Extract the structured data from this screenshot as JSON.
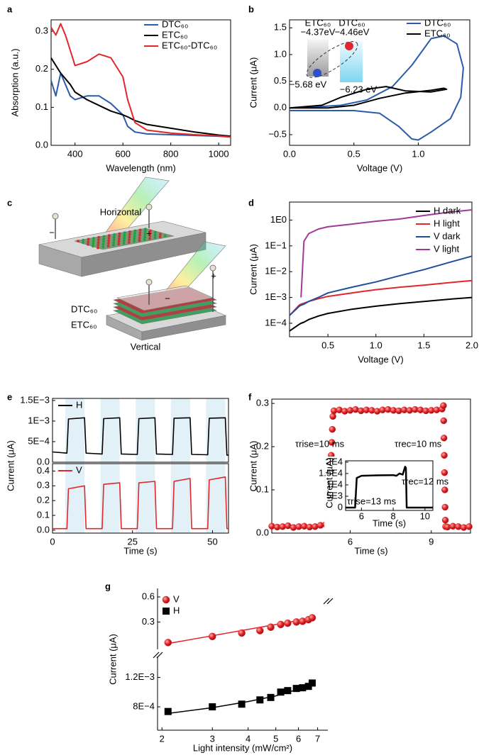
{
  "chart_data": [
    {
      "panel": "a",
      "type": "line",
      "xlabel": "Wavelength (nm)",
      "ylabel": "Absorption (a.u.)",
      "x": [
        300,
        320,
        340,
        360,
        380,
        400,
        450,
        500,
        550,
        600,
        620,
        650,
        700,
        800,
        900,
        1000,
        1050
      ],
      "xlim": [
        300,
        1050
      ],
      "xticks": [
        400,
        600,
        800,
        1000
      ],
      "ylim": [
        0,
        0.33
      ],
      "yticks": [
        {
          "value": 0,
          "label": "0.0"
        },
        0.1,
        0.2,
        0.3
      ],
      "legend": "upper right",
      "series": [
        {
          "name": "DTC₆₀",
          "color": "#2a5caa",
          "values": [
            0.17,
            0.13,
            0.19,
            0.16,
            0.13,
            0.12,
            0.13,
            0.13,
            0.11,
            0.08,
            0.05,
            0.035,
            0.03,
            0.028,
            0.026,
            0.024,
            0.022
          ]
        },
        {
          "name": "ETC₆₀",
          "color": "#000000",
          "values": [
            0.23,
            0.21,
            0.19,
            0.175,
            0.16,
            0.14,
            0.12,
            0.105,
            0.09,
            0.08,
            0.075,
            0.065,
            0.055,
            0.045,
            0.035,
            0.027,
            0.024
          ]
        },
        {
          "name": "ETC₆₀-DTC₆₀",
          "color": "#e3262b",
          "values": [
            0.31,
            0.29,
            0.32,
            0.29,
            0.25,
            0.21,
            0.22,
            0.24,
            0.23,
            0.18,
            0.12,
            0.06,
            0.04,
            0.032,
            0.028,
            0.025,
            0.022
          ]
        }
      ]
    },
    {
      "panel": "b",
      "type": "line",
      "xlabel": "Voltage (V)",
      "ylabel": "Current (μA)",
      "xlim": [
        0,
        1.4
      ],
      "xticks": [
        {
          "value": 0,
          "label": "0.0"
        },
        0.5,
        {
          "value": 1,
          "label": "1.0"
        }
      ],
      "ylim": [
        -0.7,
        1.65
      ],
      "yticks": [
        {
          "value": -0.5,
          "label": "−0.5"
        },
        {
          "value": 0,
          "label": "0.0"
        },
        0.5,
        {
          "value": 1,
          "label": "1.0"
        },
        1.5
      ],
      "legend": "upper right",
      "series": [
        {
          "name": "DTC₆₀",
          "color": "#2a5caa",
          "x": [
            0,
            0.5,
            0.7,
            0.85,
            0.95,
            1.0,
            1.1,
            1.25,
            1.33,
            1.35,
            1.3,
            1.2,
            1.1,
            0.95,
            0.8,
            0.6,
            0.4,
            0.2,
            0
          ],
          "values": [
            -0.05,
            -0.05,
            -0.1,
            -0.35,
            -0.58,
            -0.6,
            -0.45,
            -0.2,
            0.2,
            0.75,
            1.2,
            1.35,
            1.3,
            0.8,
            0.4,
            0.15,
            0.05,
            0.02,
            0
          ]
        },
        {
          "name": "ETC₆₀",
          "color": "#000000",
          "x": [
            0,
            0.3,
            0.5,
            0.7,
            0.9,
            1.1,
            1.2,
            1.22,
            1.1,
            0.9,
            0.75,
            0.6,
            0.4,
            0.25,
            0
          ],
          "values": [
            0,
            0,
            0.05,
            0.18,
            0.28,
            0.33,
            0.37,
            0.35,
            0.3,
            0.32,
            0.4,
            0.35,
            0.2,
            0.05,
            0
          ]
        }
      ],
      "inset": {
        "materials": [
          "ETC₆₀",
          "DTC₆₀"
        ],
        "levels": [
          "−4.37eV",
          "−4.46eV",
          "−5.68 eV",
          "−6.23 eV"
        ]
      }
    },
    {
      "panel": "c",
      "type": "diagram",
      "labels": {
        "horizontal": "Horizontal",
        "top_layer": "DTC₆₀",
        "bottom_layer": "ETC₆₀",
        "vertical": "Vertical"
      },
      "signs": [
        "−",
        "+",
        "−",
        "+"
      ]
    },
    {
      "panel": "d",
      "type": "line",
      "xlabel": "Voltage (V)",
      "ylabel": "Current (μA)",
      "yscale": "log",
      "x": [
        0.1,
        0.2,
        0.22,
        0.25,
        0.3,
        0.4,
        0.5,
        0.75,
        1.0,
        1.25,
        1.5,
        1.75,
        2.0
      ],
      "xlim": [
        0.1,
        2.0
      ],
      "xticks": [
        0.5,
        {
          "value": 1,
          "label": "1.0"
        },
        1.5,
        {
          "value": 2,
          "label": "2.0"
        }
      ],
      "ylim": [
        3e-05,
        5
      ],
      "yticks": [
        {
          "value": 0.0001,
          "label": "1E−4"
        },
        {
          "value": 0.001,
          "label": "1E−3"
        },
        {
          "value": 0.01,
          "label": "1E−2"
        },
        {
          "value": 0.1,
          "label": "1E−1"
        },
        {
          "value": 1,
          "label": "1E0"
        }
      ],
      "legend": "upper right",
      "series": [
        {
          "name": "H dark",
          "color": "#000000",
          "values": [
            5e-05,
            9e-05,
            0.0001,
            0.00011,
            0.00014,
            0.00019,
            0.00024,
            0.00035,
            0.00046,
            0.00058,
            0.0007,
            0.00085,
            0.001
          ]
        },
        {
          "name": "H light",
          "color": "#e3262b",
          "values": [
            0.0002,
            0.0005,
            0.00055,
            0.0006,
            0.0007,
            0.0009,
            0.0011,
            0.0015,
            0.002,
            0.0025,
            0.003,
            0.0037,
            0.0045
          ]
        },
        {
          "name": "V dark",
          "color": "#1f4e9b",
          "values": [
            0.0002,
            0.00045,
            0.0005,
            0.00055,
            0.0007,
            0.001,
            0.0015,
            0.0025,
            0.004,
            0.007,
            0.012,
            0.022,
            0.04
          ]
        },
        {
          "name": "V light",
          "color": "#a0399a",
          "values": [
            null,
            null,
            0.001,
            0.15,
            0.3,
            0.45,
            0.55,
            0.7,
            0.9,
            1.1,
            1.5,
            2.0,
            2.5
          ]
        }
      ]
    },
    {
      "panel": "e",
      "type": "line",
      "xlabel": "Time (s)",
      "ylabel": "Current (μA)",
      "xlim": [
        0,
        55
      ],
      "xticks": [
        0,
        25,
        50
      ],
      "spans": [
        [
          4,
          10
        ],
        [
          15,
          21
        ],
        [
          26,
          32
        ],
        [
          37,
          43
        ],
        [
          48,
          54
        ]
      ],
      "subplots": [
        {
          "ylim": [
            0,
            0.00155
          ],
          "yticks": [
            {
              "value": 0,
              "label": "0.0"
            },
            {
              "value": 0.0005,
              "label": "5E−4"
            },
            {
              "value": 0.001,
              "label": "1E−3"
            },
            {
              "value": 0.0015,
              "label": "1.5E−3"
            }
          ],
          "series": [
            {
              "name": "H",
              "color": "#000000",
              "x": [
                0,
                4.5,
                5,
                10,
                10.5,
                15.5,
                16,
                21,
                21.5,
                26.5,
                27,
                32,
                32.5,
                37.5,
                38,
                43,
                43.5,
                48.5,
                49,
                54,
                54.5,
                55
              ],
              "values": [
                0.00025,
                0.00022,
                0.00105,
                0.00108,
                0.00022,
                0.0002,
                0.00106,
                0.00108,
                0.0002,
                0.00019,
                0.00106,
                0.00108,
                0.0002,
                0.00019,
                0.00107,
                0.00108,
                0.00019,
                0.00018,
                0.00107,
                0.00108,
                0.00017,
                0.00017
              ]
            }
          ]
        },
        {
          "ylim": [
            -0.02,
            0.45
          ],
          "yticks": [
            {
              "value": 0,
              "label": "0.0"
            },
            0.1,
            0.2,
            0.3,
            0.4
          ],
          "series": [
            {
              "name": "V",
              "color": "#e3262b",
              "x": [
                0,
                4.5,
                5,
                10,
                10.5,
                15.5,
                16,
                21,
                21.5,
                26.5,
                27,
                32,
                32.5,
                37.5,
                38,
                43,
                43.5,
                48.5,
                49,
                54,
                54.5,
                55
              ],
              "values": [
                0.01,
                0.01,
                0.28,
                0.3,
                0.01,
                0.01,
                0.31,
                0.32,
                0.01,
                0.01,
                0.32,
                0.33,
                0.01,
                0.01,
                0.33,
                0.35,
                0.01,
                0.01,
                0.34,
                0.36,
                0.01,
                0.01
              ]
            }
          ]
        }
      ]
    },
    {
      "panel": "f",
      "type": "scatter",
      "xlabel": "Time (s)",
      "ylabel": "Current (μA)",
      "color": "#e3262b",
      "xlim": [
        3.1,
        10.45
      ],
      "xticks": [
        6,
        9
      ],
      "ylim": [
        0,
        0.31
      ],
      "yticks": [
        {
          "value": 0,
          "label": "0.0"
        },
        0.1,
        0.2,
        0.3
      ],
      "x": [
        3.1,
        3.3,
        3.5,
        3.7,
        3.9,
        4.1,
        4.3,
        4.5,
        4.7,
        4.9,
        5.1,
        5.2,
        5.22,
        5.24,
        5.26,
        5.28,
        5.3,
        5.32,
        5.34,
        5.36,
        5.4,
        5.6,
        5.8,
        6.0,
        6.2,
        6.4,
        6.6,
        6.8,
        7.0,
        7.2,
        7.4,
        7.6,
        7.8,
        8.0,
        8.2,
        8.4,
        8.6,
        8.8,
        9.0,
        9.2,
        9.4,
        9.45,
        9.46,
        9.47,
        9.48,
        9.49,
        9.5,
        9.51,
        9.52,
        9.53,
        9.6,
        9.8,
        10.0,
        10.2,
        10.4
      ],
      "values": [
        0.016,
        0.014,
        0.015,
        0.017,
        0.013,
        0.015,
        0.016,
        0.014,
        0.015,
        0.018,
        0.02,
        0.04,
        0.06,
        0.09,
        0.12,
        0.15,
        0.18,
        0.21,
        0.24,
        0.27,
        0.283,
        0.285,
        0.282,
        0.284,
        0.286,
        0.283,
        0.285,
        0.284,
        0.282,
        0.285,
        0.286,
        0.284,
        0.283,
        0.285,
        0.284,
        0.286,
        0.285,
        0.283,
        0.284,
        0.285,
        0.287,
        0.295,
        0.26,
        0.22,
        0.18,
        0.14,
        0.1,
        0.06,
        0.03,
        0.015,
        0.014,
        0.016,
        0.015,
        0.013,
        0.015
      ],
      "annotations": [
        "τrise=10 ms",
        "τrec=10 ms"
      ],
      "inset": {
        "type": "line",
        "xlabel": "Time (s)",
        "ylabel": "Current (μA)",
        "xlim": [
          5,
          10.5
        ],
        "xticks": [
          6,
          8,
          10
        ],
        "ylim": [
          -1250,
          20600
        ],
        "yticks": [
          0,
          {
            "value": 5000,
            "label": "5E3"
          },
          {
            "value": 10000,
            "label": "1E4"
          },
          {
            "value": 15000,
            "label": "1.5E4"
          },
          {
            "value": 20000,
            "label": "2E4"
          }
        ],
        "x": [
          5,
          5.6,
          5.7,
          6,
          7,
          8,
          8.2,
          8.4,
          8.6,
          8.75,
          8.8,
          8.85,
          10.5
        ],
        "values": [
          0,
          0,
          13000,
          14000,
          14200,
          14300,
          14000,
          15000,
          14500,
          18000,
          17500,
          0,
          0
        ],
        "annotations": [
          "τrise=13 ms",
          "τrec=12 ms"
        ]
      }
    },
    {
      "panel": "g",
      "type": "scatter",
      "xlabel": "Light intensity (mW/cm²)",
      "ylabel": "Current (μA)",
      "xscale": "log",
      "yscale": "log",
      "xlim": [
        1.93,
        7.6
      ],
      "xticks": [
        2,
        3,
        4,
        5,
        6,
        7
      ],
      "subplots": [
        {
          "ylim": [
            0.13,
            0.76
          ],
          "yticks": [
            0.3,
            0.6
          ],
          "series": [
            {
              "name": "V",
              "color": "#e3262b",
              "marker": "circle",
              "x": [
                2.1,
                3,
                3.8,
                4.4,
                4.8,
                5.2,
                5.5,
                5.9,
                6.2,
                6.5,
                6.7
              ],
              "values": [
                0.17,
                0.201,
                0.221,
                0.236,
                0.26,
                0.28,
                0.29,
                0.3,
                0.306,
                0.32,
                0.337
              ]
            }
          ],
          "fits": [
            {
              "color": "#e3262b",
              "x": [
                2.1,
                6.7
              ],
              "values": [
                0.165,
                0.335
              ]
            }
          ]
        },
        {
          "ylim": [
            0.00058,
            0.0016
          ],
          "yticks": [
            {
              "value": 0.0008,
              "label": "8E−4"
            },
            {
              "value": 0.0012,
              "label": "1.2E−3"
            }
          ],
          "series": [
            {
              "name": "H",
              "color": "#000000",
              "marker": "square",
              "x": [
                2.1,
                3,
                3.8,
                4.4,
                4.8,
                5.2,
                5.5,
                5.9,
                6.2,
                6.5,
                6.7
              ],
              "values": [
                0.00075,
                0.0008,
                0.00083,
                0.00088,
                0.00091,
                0.00098,
                0.001,
                0.00103,
                0.00104,
                0.00106,
                0.00111
              ]
            }
          ],
          "fits": [
            {
              "color": "#000000",
              "x": [
                2.1,
                3,
                4,
                5,
                6,
                6.7
              ],
              "values": [
                0.00073,
                0.00079,
                0.00086,
                0.00093,
                0.00102,
                0.00109
              ]
            }
          ]
        }
      ]
    }
  ]
}
